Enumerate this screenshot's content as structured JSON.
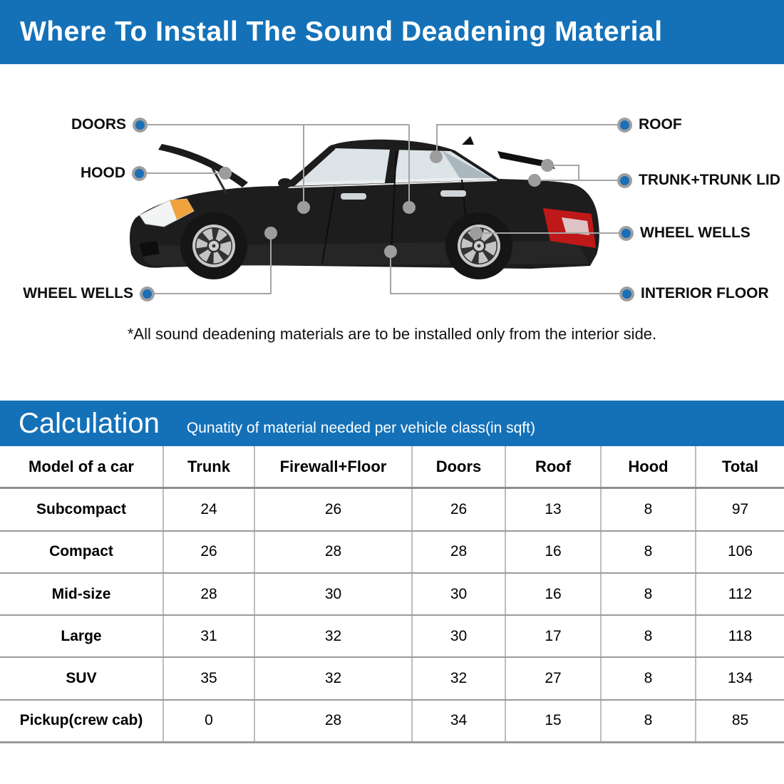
{
  "banner": {
    "title": "Where To Install The Sound Deadening Material",
    "bg_color": "#1471b8"
  },
  "diagram": {
    "labels": [
      {
        "text": "DOORS",
        "side": "left"
      },
      {
        "text": "HOOD",
        "side": "left"
      },
      {
        "text": "WHEEL WELLS",
        "side": "left"
      },
      {
        "text": "ROOF",
        "side": "right"
      },
      {
        "text": "TRUNK+TRUNK LID",
        "side": "right"
      },
      {
        "text": "WHEEL WELLS",
        "side": "right"
      },
      {
        "text": "INTERIOR FLOOR",
        "side": "right"
      }
    ],
    "note": "*All sound deadening materials are to be installed only from the interior side.",
    "dot_blue": "#1b6fb7",
    "dot_ring_gray": "#9e9e9e",
    "connector_gray": "#a5a5a5"
  },
  "calculation": {
    "title": "Calculation",
    "subtitle": "Qunatity of material needed per vehicle class(in sqft)"
  },
  "table": {
    "headers": [
      "Model of a car",
      "Trunk",
      "Firewall+Floor",
      "Doors",
      "Roof",
      "Hood",
      "Total"
    ],
    "rows": [
      {
        "model": "Subcompact",
        "values": [
          24,
          26,
          26,
          13,
          8,
          97
        ]
      },
      {
        "model": "Compact",
        "values": [
          26,
          28,
          28,
          16,
          8,
          106
        ]
      },
      {
        "model": "Mid-size",
        "values": [
          28,
          30,
          30,
          16,
          8,
          112
        ]
      },
      {
        "model": "Large",
        "values": [
          31,
          32,
          30,
          17,
          8,
          118
        ]
      },
      {
        "model": "SUV",
        "values": [
          35,
          32,
          32,
          27,
          8,
          134
        ]
      },
      {
        "model": "Pickup(crew cab)",
        "values": [
          0,
          28,
          34,
          15,
          8,
          85
        ]
      }
    ]
  }
}
